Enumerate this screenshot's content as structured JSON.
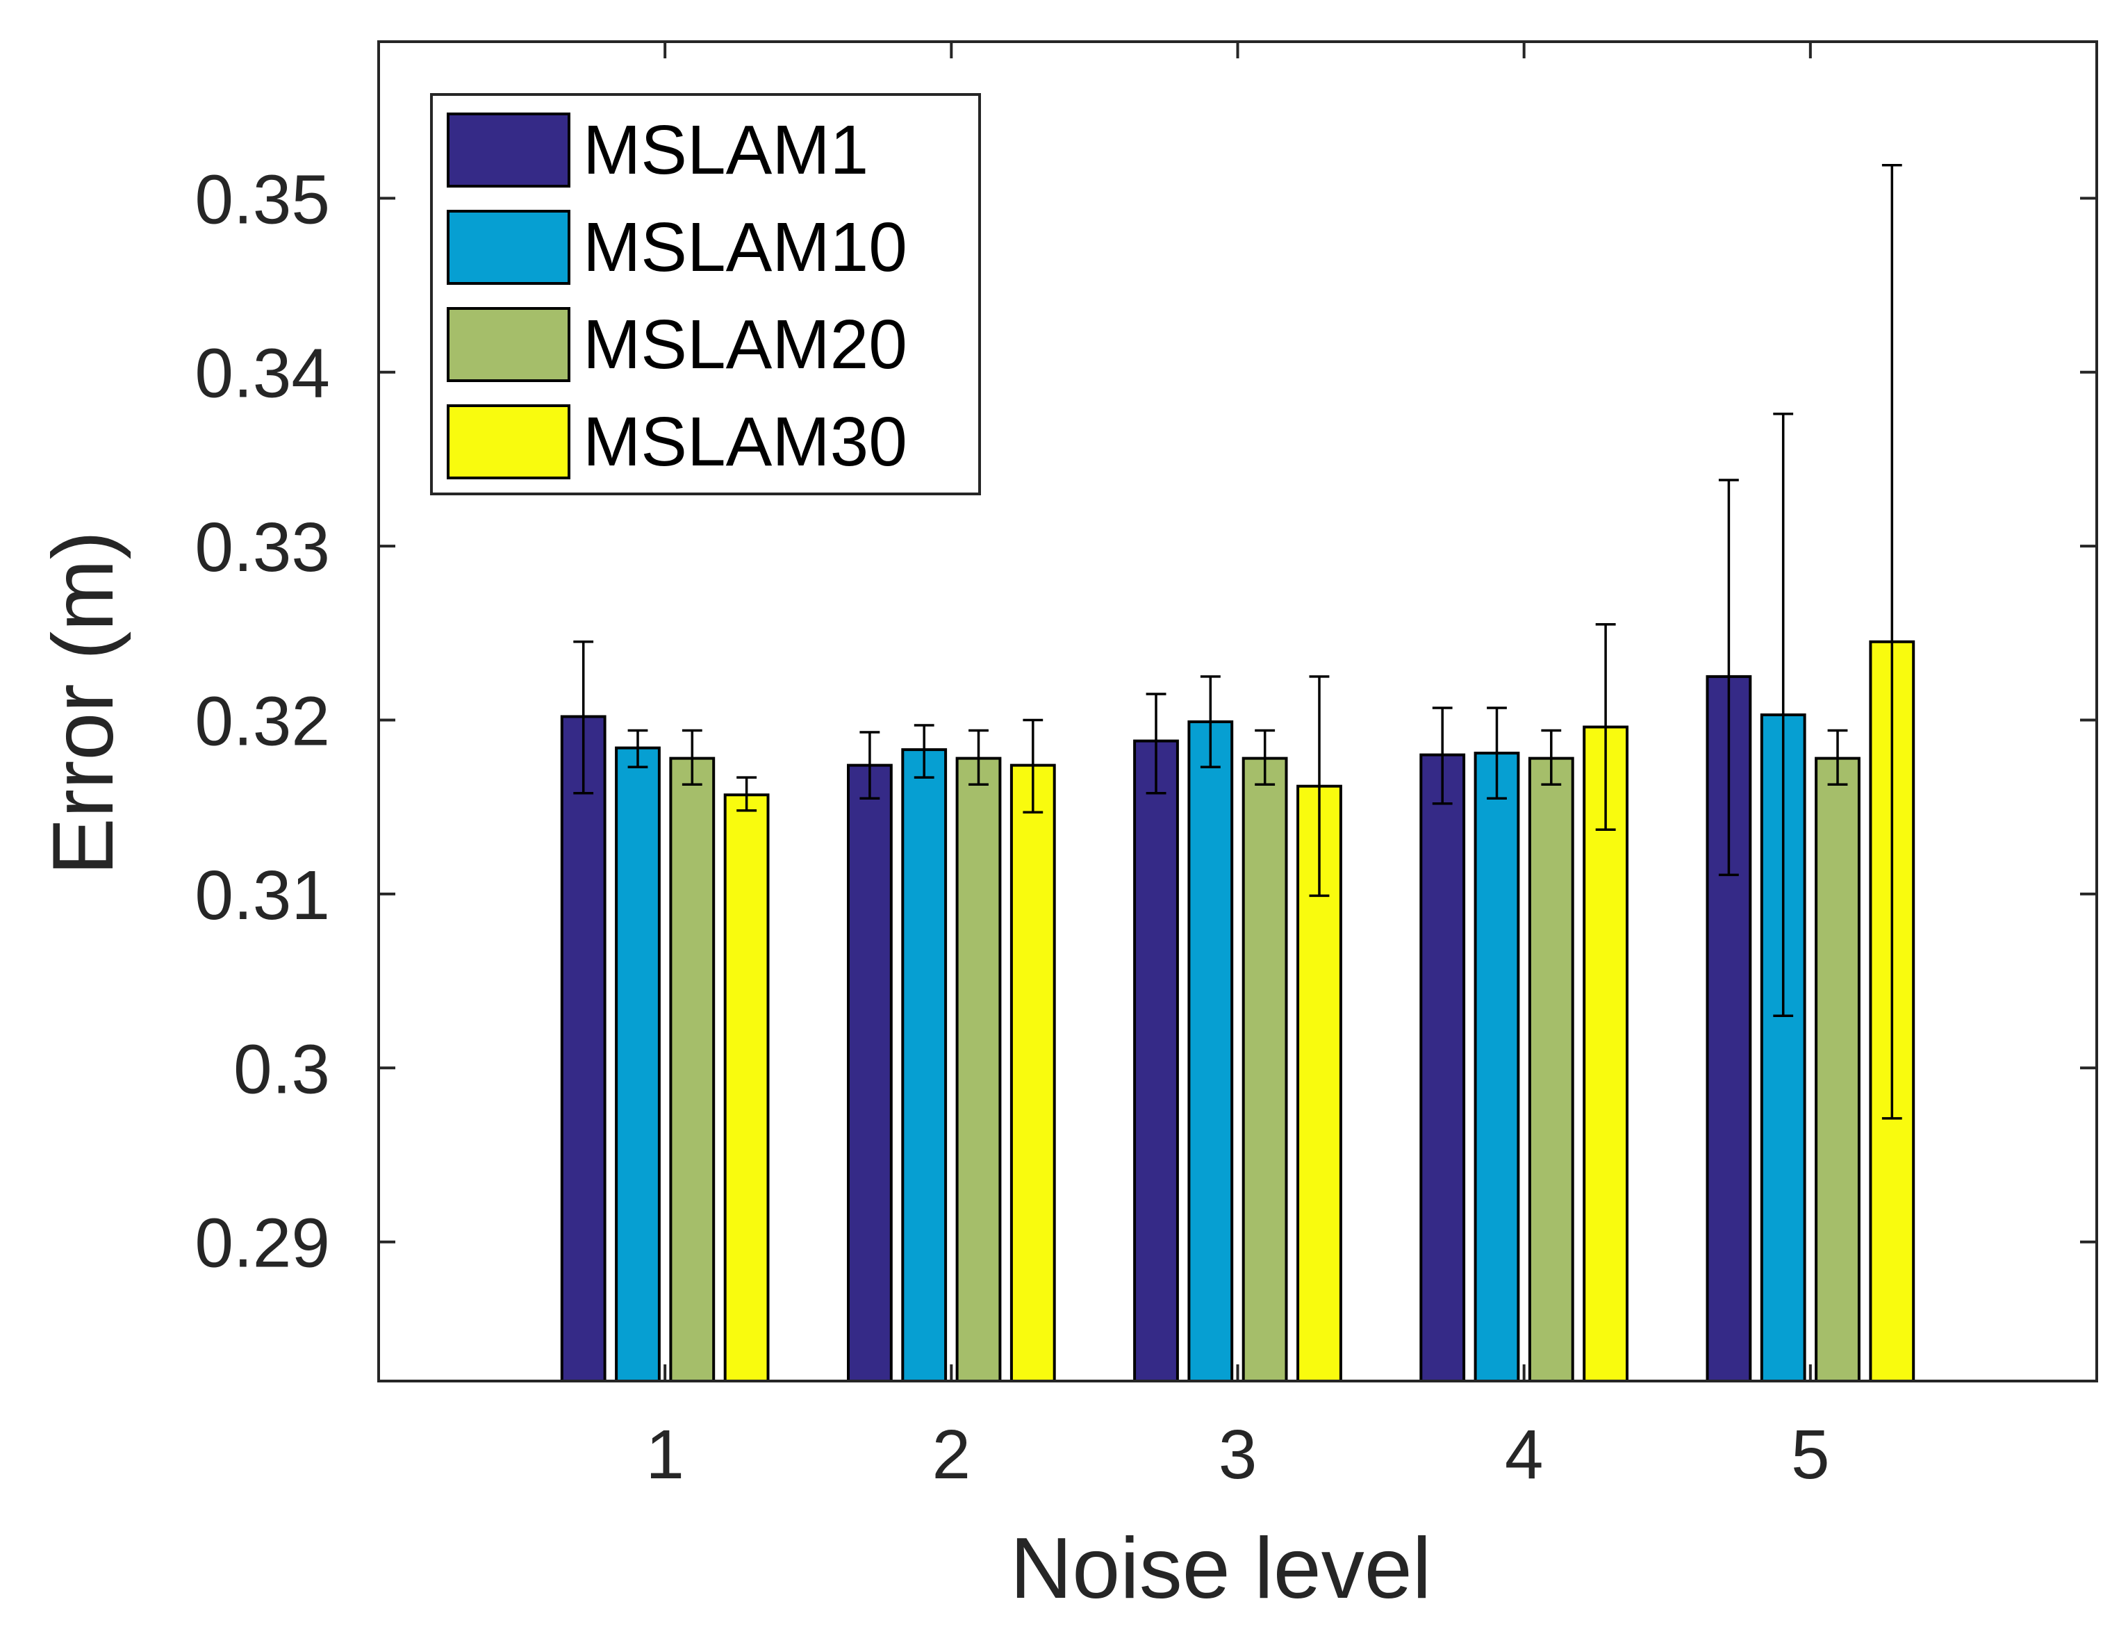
{
  "chart_data": {
    "type": "bar",
    "title": "",
    "xlabel": "Noise level",
    "ylabel": "Error (m)",
    "categories": [
      "1",
      "2",
      "3",
      "4",
      "5"
    ],
    "xlim": [
      0,
      6
    ],
    "ylim": [
      0.282,
      0.359
    ],
    "yticks": [
      0.29,
      0.3,
      0.31,
      0.32,
      0.33,
      0.34,
      0.35
    ],
    "ytick_labels": [
      "0.29",
      "0.3",
      "0.31",
      "0.32",
      "0.33",
      "0.34",
      "0.35"
    ],
    "grid": false,
    "legend_position": "top-left",
    "series": [
      {
        "name": "MSLAM1",
        "color": "#352A87",
        "values": [
          0.3202,
          0.3174,
          0.3188,
          0.318,
          0.3225
        ],
        "error_low": [
          0.3158,
          0.3155,
          0.3158,
          0.3152,
          0.3111
        ],
        "error_high": [
          0.3245,
          0.3193,
          0.3215,
          0.3207,
          0.3338
        ]
      },
      {
        "name": "MSLAM10",
        "color": "#069FD2",
        "values": [
          0.3184,
          0.3183,
          0.3199,
          0.3181,
          0.3203
        ],
        "error_low": [
          0.3173,
          0.3167,
          0.3173,
          0.3155,
          0.303
        ],
        "error_high": [
          0.3194,
          0.3197,
          0.3225,
          0.3207,
          0.3376
        ]
      },
      {
        "name": "MSLAM20",
        "color": "#A5BE6A",
        "values": [
          0.3178,
          0.3178,
          0.3178,
          0.3178,
          0.3178
        ],
        "error_low": [
          0.3163,
          0.3163,
          0.3163,
          0.3163,
          0.3163
        ],
        "error_high": [
          0.3194,
          0.3194,
          0.3194,
          0.3194,
          0.3194
        ]
      },
      {
        "name": "MSLAM30",
        "color": "#F9FB0E",
        "values": [
          0.3157,
          0.3174,
          0.3162,
          0.3196,
          0.3245
        ],
        "error_low": [
          0.3148,
          0.3147,
          0.3099,
          0.3137,
          0.2971
        ],
        "error_high": [
          0.3167,
          0.32,
          0.3225,
          0.3255,
          0.3519
        ]
      }
    ]
  }
}
